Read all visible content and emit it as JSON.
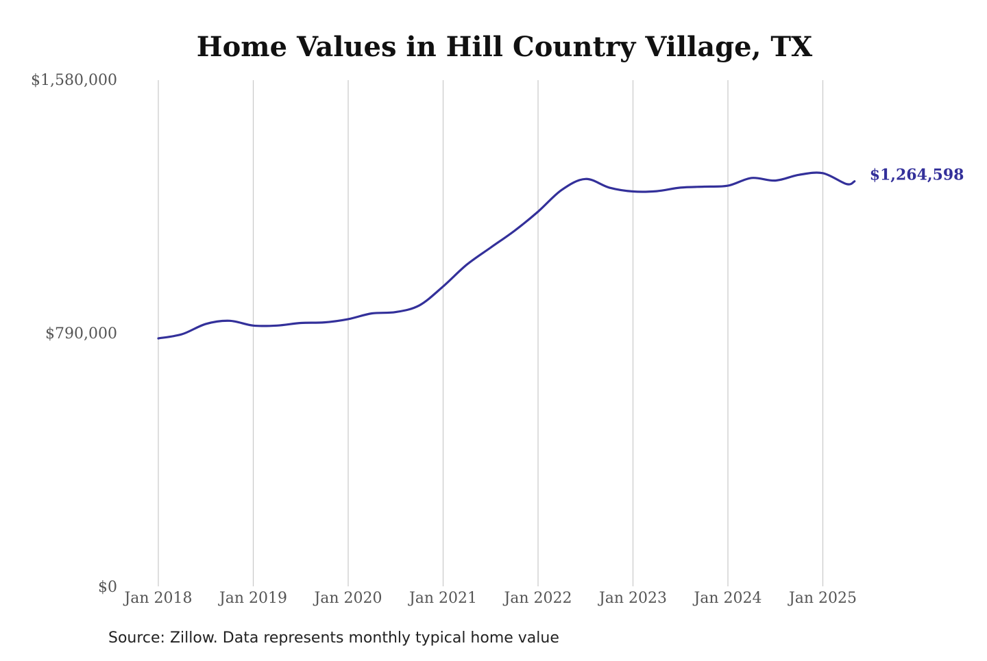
{
  "chart_data": {
    "type": "line",
    "title": "Home Values in Hill Country Village, TX",
    "source": "Source: Zillow. Data represents monthly typical home value",
    "xlabel": "",
    "ylabel": "",
    "x_ticks": [
      "Jan 2018",
      "Jan 2019",
      "Jan 2020",
      "Jan 2021",
      "Jan 2022",
      "Jan 2023",
      "Jan 2024",
      "Jan 2025"
    ],
    "y_ticks": [
      "$0",
      "$790,000",
      "$1,580,000"
    ],
    "y_tick_values": [
      0,
      790000,
      1580000
    ],
    "ylim": [
      0,
      1580000
    ],
    "xlim": [
      "2018-01",
      "2025-06"
    ],
    "grid": "vertical",
    "line_color": "#33309a",
    "end_label": "$1,264,598",
    "series": [
      {
        "x": [
          "2018-01",
          "2018-04",
          "2018-07",
          "2018-10",
          "2019-01",
          "2019-04",
          "2019-07",
          "2019-10",
          "2020-01",
          "2020-04",
          "2020-07",
          "2020-10",
          "2021-01",
          "2021-04",
          "2021-07",
          "2021-10",
          "2022-01",
          "2022-04",
          "2022-07",
          "2022-10",
          "2023-01",
          "2023-04",
          "2023-07",
          "2023-10",
          "2024-01",
          "2024-04",
          "2024-07",
          "2024-10",
          "2025-01",
          "2025-04",
          "2025-05"
        ],
        "values": [
          775000,
          788000,
          820000,
          830000,
          815000,
          815000,
          823000,
          825000,
          835000,
          853000,
          857000,
          878000,
          937000,
          1005000,
          1058000,
          1110000,
          1170000,
          1238000,
          1272000,
          1245000,
          1233000,
          1234000,
          1245000,
          1248000,
          1251000,
          1275000,
          1267000,
          1285000,
          1290000,
          1256000,
          1264598
        ]
      }
    ]
  }
}
